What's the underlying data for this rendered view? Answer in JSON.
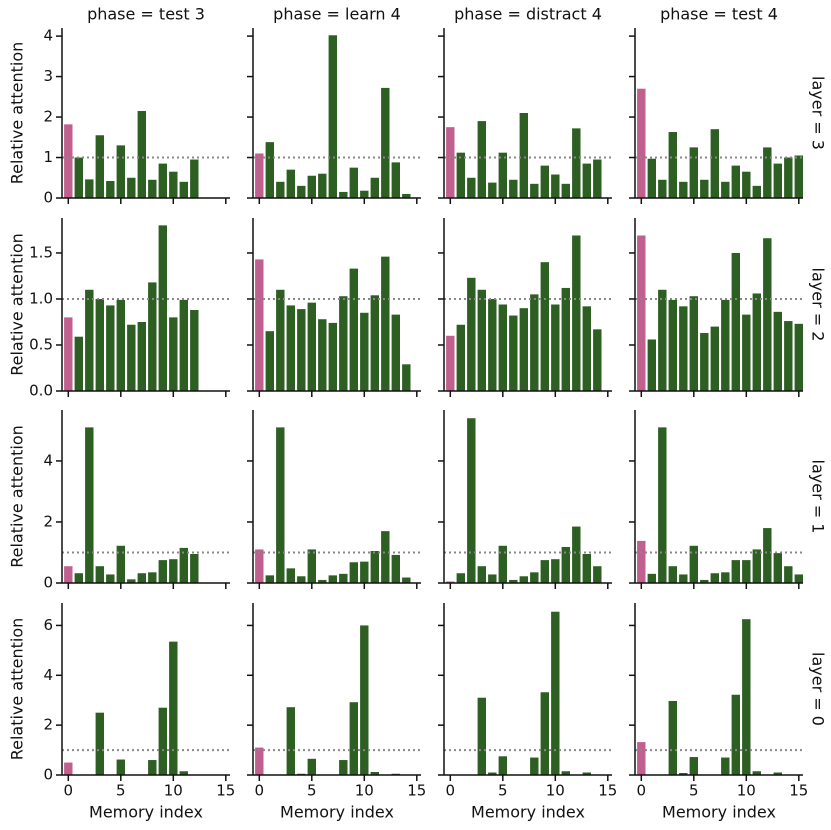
{
  "chart_data": [
    {
      "type": "bar",
      "title": "phase = test 3",
      "y_label": "Relative attention",
      "x": [
        0,
        1,
        2,
        3,
        4,
        5,
        6,
        7,
        8,
        9,
        10,
        11,
        12
      ],
      "values": [
        1.82,
        1.0,
        0.46,
        1.55,
        0.42,
        1.3,
        0.5,
        2.15,
        0.45,
        0.85,
        0.65,
        0.4,
        0.95
      ],
      "xlim": [
        -0.6,
        15.4
      ],
      "xticks": [
        0,
        5,
        10,
        15
      ],
      "ylim": [
        0,
        4.2
      ],
      "yticks": [
        0,
        1,
        2,
        3,
        4
      ],
      "show_xtick_labels": false,
      "show_ytick_labels": true,
      "reference_line": 1,
      "color": "#2d5e22",
      "highlight_color": "#c0608e"
    },
    {
      "type": "bar",
      "title": "phase = learn 4",
      "x": [
        0,
        1,
        2,
        3,
        4,
        5,
        6,
        7,
        8,
        9,
        10,
        11,
        12,
        13,
        14
      ],
      "values": [
        1.1,
        1.38,
        0.4,
        0.7,
        0.3,
        0.55,
        0.6,
        4.02,
        0.15,
        0.75,
        0.18,
        0.5,
        2.72,
        0.88,
        0.1
      ],
      "xlim": [
        -0.6,
        15.4
      ],
      "xticks": [
        0,
        5,
        10,
        15
      ],
      "ylim": [
        0,
        4.2
      ],
      "yticks": [
        0,
        1,
        2,
        3,
        4
      ],
      "show_xtick_labels": false,
      "show_ytick_labels": false,
      "reference_line": 1,
      "color": "#2d5e22",
      "highlight_color": "#c0608e"
    },
    {
      "type": "bar",
      "title": "phase = distract 4",
      "x": [
        0,
        1,
        2,
        3,
        4,
        5,
        6,
        7,
        8,
        9,
        10,
        11,
        12,
        13,
        14
      ],
      "values": [
        1.75,
        1.12,
        0.5,
        1.9,
        0.38,
        1.12,
        0.45,
        2.1,
        0.35,
        0.8,
        0.58,
        0.35,
        1.72,
        0.85,
        0.95
      ],
      "xlim": [
        -0.6,
        15.4
      ],
      "xticks": [
        0,
        5,
        10,
        15
      ],
      "ylim": [
        0,
        4.2
      ],
      "yticks": [
        0,
        1,
        2,
        3,
        4
      ],
      "show_xtick_labels": false,
      "show_ytick_labels": false,
      "reference_line": 1,
      "color": "#2d5e22",
      "highlight_color": "#c0608e"
    },
    {
      "type": "bar",
      "title": "phase = test 4",
      "row_label": "layer = 3",
      "x": [
        0,
        1,
        2,
        3,
        4,
        5,
        6,
        7,
        8,
        9,
        10,
        11,
        12,
        13,
        14,
        15
      ],
      "values": [
        2.7,
        0.97,
        0.45,
        1.63,
        0.4,
        1.25,
        0.45,
        1.7,
        0.4,
        0.8,
        0.65,
        0.3,
        1.25,
        0.85,
        1.0,
        1.05
      ],
      "xlim": [
        -0.6,
        15.4
      ],
      "xticks": [
        0,
        5,
        10,
        15
      ],
      "ylim": [
        0,
        4.2
      ],
      "yticks": [
        0,
        1,
        2,
        3,
        4
      ],
      "show_xtick_labels": false,
      "show_ytick_labels": false,
      "reference_line": 1,
      "color": "#2d5e22",
      "highlight_color": "#c0608e"
    },
    {
      "type": "bar",
      "y_label": "Relative attention",
      "x": [
        0,
        1,
        2,
        3,
        4,
        5,
        6,
        7,
        8,
        9,
        10,
        11,
        12
      ],
      "values": [
        0.8,
        0.59,
        1.1,
        1.0,
        0.93,
        0.99,
        0.72,
        0.75,
        1.18,
        1.8,
        0.8,
        0.99,
        0.88
      ],
      "xlim": [
        -0.6,
        15.4
      ],
      "xticks": [
        0,
        5,
        10,
        15
      ],
      "ylim": [
        0,
        1.88
      ],
      "yticks": [
        {
          "value": 0,
          "label": "0.0"
        },
        {
          "value": 0.5,
          "label": "0.5"
        },
        {
          "value": 1,
          "label": "1.0"
        },
        {
          "value": 1.5,
          "label": "1.5"
        }
      ],
      "show_xtick_labels": false,
      "show_ytick_labels": true,
      "reference_line": 1,
      "color": "#2d5e22",
      "highlight_color": "#c0608e"
    },
    {
      "type": "bar",
      "x": [
        0,
        1,
        2,
        3,
        4,
        5,
        6,
        7,
        8,
        9,
        10,
        11,
        12,
        13,
        14
      ],
      "values": [
        1.43,
        0.65,
        1.1,
        0.93,
        0.89,
        0.96,
        0.78,
        0.74,
        1.03,
        1.33,
        0.85,
        1.04,
        1.46,
        0.83,
        0.29
      ],
      "xlim": [
        -0.6,
        15.4
      ],
      "xticks": [
        0,
        5,
        10,
        15
      ],
      "ylim": [
        0,
        1.88
      ],
      "yticks": [
        {
          "value": 0,
          "label": "0.0"
        },
        {
          "value": 0.5,
          "label": "0.5"
        },
        {
          "value": 1,
          "label": "1.0"
        },
        {
          "value": 1.5,
          "label": "1.5"
        }
      ],
      "show_xtick_labels": false,
      "show_ytick_labels": false,
      "reference_line": 1,
      "color": "#2d5e22",
      "highlight_color": "#c0608e"
    },
    {
      "type": "bar",
      "x": [
        0,
        1,
        2,
        3,
        4,
        5,
        6,
        7,
        8,
        9,
        10,
        11,
        12,
        13,
        14
      ],
      "values": [
        0.6,
        0.72,
        1.23,
        1.1,
        1.0,
        0.94,
        0.82,
        0.9,
        1.05,
        1.4,
        0.94,
        1.12,
        1.69,
        0.92,
        0.67
      ],
      "xlim": [
        -0.6,
        15.4
      ],
      "xticks": [
        0,
        5,
        10,
        15
      ],
      "ylim": [
        0,
        1.88
      ],
      "yticks": [
        {
          "value": 0,
          "label": "0.0"
        },
        {
          "value": 0.5,
          "label": "0.5"
        },
        {
          "value": 1,
          "label": "1.0"
        },
        {
          "value": 1.5,
          "label": "1.5"
        }
      ],
      "show_xtick_labels": false,
      "show_ytick_labels": false,
      "reference_line": 1,
      "color": "#2d5e22",
      "highlight_color": "#c0608e"
    },
    {
      "type": "bar",
      "row_label": "layer = 2",
      "x": [
        0,
        1,
        2,
        3,
        4,
        5,
        6,
        7,
        8,
        9,
        10,
        11,
        12,
        13,
        14,
        15
      ],
      "values": [
        1.69,
        0.56,
        1.1,
        0.99,
        0.92,
        1.03,
        0.63,
        0.7,
        0.99,
        1.5,
        0.83,
        1.06,
        1.66,
        0.86,
        0.76,
        0.73
      ],
      "xlim": [
        -0.6,
        15.4
      ],
      "xticks": [
        0,
        5,
        10,
        15
      ],
      "ylim": [
        0,
        1.88
      ],
      "yticks": [
        {
          "value": 0,
          "label": "0.0"
        },
        {
          "value": 0.5,
          "label": "0.5"
        },
        {
          "value": 1,
          "label": "1.0"
        },
        {
          "value": 1.5,
          "label": "1.5"
        }
      ],
      "show_xtick_labels": false,
      "show_ytick_labels": false,
      "reference_line": 1,
      "color": "#2d5e22",
      "highlight_color": "#c0608e"
    },
    {
      "type": "bar",
      "y_label": "Relative attention",
      "x": [
        0,
        1,
        2,
        3,
        4,
        5,
        6,
        7,
        8,
        9,
        10,
        11,
        12
      ],
      "values": [
        0.55,
        0.32,
        5.1,
        0.55,
        0.28,
        1.22,
        0.12,
        0.32,
        0.35,
        0.75,
        0.78,
        1.15,
        0.95
      ],
      "xlim": [
        -0.6,
        15.4
      ],
      "xticks": [
        0,
        5,
        10,
        15
      ],
      "ylim": [
        0,
        5.67
      ],
      "yticks": [
        0,
        2,
        4
      ],
      "show_xtick_labels": false,
      "show_ytick_labels": true,
      "reference_line": 1,
      "color": "#2d5e22",
      "highlight_color": "#c0608e"
    },
    {
      "type": "bar",
      "x": [
        0,
        1,
        2,
        3,
        4,
        5,
        6,
        7,
        8,
        9,
        10,
        11,
        12,
        13,
        14
      ],
      "values": [
        1.1,
        0.25,
        5.1,
        0.48,
        0.22,
        1.1,
        0.1,
        0.25,
        0.3,
        0.68,
        0.7,
        1.05,
        1.7,
        0.92,
        0.18
      ],
      "xlim": [
        -0.6,
        15.4
      ],
      "xticks": [
        0,
        5,
        10,
        15
      ],
      "ylim": [
        0,
        5.67
      ],
      "yticks": [
        0,
        2,
        4
      ],
      "show_xtick_labels": false,
      "show_ytick_labels": false,
      "reference_line": 1,
      "color": "#2d5e22",
      "highlight_color": "#c0608e"
    },
    {
      "type": "bar",
      "x": [
        0,
        1,
        2,
        3,
        4,
        5,
        6,
        7,
        8,
        9,
        10,
        11,
        12,
        13,
        14
      ],
      "values": [
        0.05,
        0.32,
        5.4,
        0.55,
        0.28,
        1.22,
        0.1,
        0.22,
        0.35,
        0.75,
        0.78,
        1.18,
        1.85,
        0.95,
        0.55
      ],
      "xlim": [
        -0.6,
        15.4
      ],
      "xticks": [
        0,
        5,
        10,
        15
      ],
      "ylim": [
        0,
        5.67
      ],
      "yticks": [
        0,
        2,
        4
      ],
      "show_xtick_labels": false,
      "show_ytick_labels": false,
      "reference_line": 1,
      "color": "#2d5e22",
      "highlight_color": "#c0608e"
    },
    {
      "type": "bar",
      "row_label": "layer = 1",
      "x": [
        0,
        1,
        2,
        3,
        4,
        5,
        6,
        7,
        8,
        9,
        10,
        11,
        12,
        13,
        14,
        15
      ],
      "values": [
        1.38,
        0.3,
        5.1,
        0.55,
        0.28,
        1.22,
        0.1,
        0.32,
        0.35,
        0.75,
        0.75,
        1.1,
        1.8,
        0.98,
        0.55,
        0.28
      ],
      "xlim": [
        -0.6,
        15.4
      ],
      "xticks": [
        0,
        5,
        10,
        15
      ],
      "ylim": [
        0,
        5.67
      ],
      "yticks": [
        0,
        2,
        4
      ],
      "show_xtick_labels": false,
      "show_ytick_labels": false,
      "reference_line": 1,
      "color": "#2d5e22",
      "highlight_color": "#c0608e"
    },
    {
      "type": "bar",
      "y_label": "Relative attention",
      "x_label": "Memory index",
      "x": [
        0,
        1,
        2,
        3,
        4,
        5,
        6,
        7,
        8,
        9,
        10,
        11,
        12
      ],
      "values": [
        0.5,
        0,
        0,
        2.5,
        0.02,
        0.62,
        0,
        0,
        0.6,
        2.7,
        5.35,
        0.15,
        0
      ],
      "xlim": [
        -0.6,
        15.4
      ],
      "xticks": [
        0,
        5,
        10,
        15
      ],
      "ylim": [
        0,
        6.9
      ],
      "yticks": [
        0,
        2,
        4,
        6
      ],
      "show_xtick_labels": true,
      "show_ytick_labels": true,
      "reference_line": 1,
      "color": "#2d5e22",
      "highlight_color": "#c0608e"
    },
    {
      "type": "bar",
      "x_label": "Memory index",
      "x": [
        0,
        1,
        2,
        3,
        4,
        5,
        6,
        7,
        8,
        9,
        10,
        11,
        12,
        13,
        14
      ],
      "values": [
        1.1,
        0,
        0,
        2.72,
        0.05,
        0.65,
        0,
        0,
        0.6,
        2.92,
        6.0,
        0.12,
        0,
        0.05,
        0
      ],
      "xlim": [
        -0.6,
        15.4
      ],
      "xticks": [
        0,
        5,
        10,
        15
      ],
      "ylim": [
        0,
        6.9
      ],
      "yticks": [
        0,
        2,
        4,
        6
      ],
      "show_xtick_labels": true,
      "show_ytick_labels": false,
      "reference_line": 1,
      "color": "#2d5e22",
      "highlight_color": "#c0608e"
    },
    {
      "type": "bar",
      "x_label": "Memory index",
      "x": [
        0,
        1,
        2,
        3,
        4,
        5,
        6,
        7,
        8,
        9,
        10,
        11,
        12,
        13,
        14
      ],
      "values": [
        0.02,
        0,
        0,
        3.1,
        0.1,
        0.75,
        0,
        0,
        0.7,
        3.32,
        6.55,
        0.15,
        0,
        0.1,
        0
      ],
      "xlim": [
        -0.6,
        15.4
      ],
      "xticks": [
        0,
        5,
        10,
        15
      ],
      "ylim": [
        0,
        6.9
      ],
      "yticks": [
        0,
        2,
        4,
        6
      ],
      "show_xtick_labels": true,
      "show_ytick_labels": false,
      "reference_line": 1,
      "color": "#2d5e22",
      "highlight_color": "#c0608e"
    },
    {
      "type": "bar",
      "row_label": "layer = 0",
      "x_label": "Memory index",
      "x": [
        0,
        1,
        2,
        3,
        4,
        5,
        6,
        7,
        8,
        9,
        10,
        11,
        12,
        13,
        14,
        15
      ],
      "values": [
        1.32,
        0,
        0,
        2.97,
        0.08,
        0.72,
        0,
        0,
        0.7,
        3.22,
        6.25,
        0.15,
        0,
        0.1,
        0,
        0
      ],
      "xlim": [
        -0.6,
        15.4
      ],
      "xticks": [
        0,
        5,
        10,
        15
      ],
      "ylim": [
        0,
        6.9
      ],
      "yticks": [
        0,
        2,
        4,
        6
      ],
      "show_xtick_labels": true,
      "show_ytick_labels": false,
      "reference_line": 1,
      "color": "#2d5e22",
      "highlight_color": "#c0608e"
    }
  ]
}
